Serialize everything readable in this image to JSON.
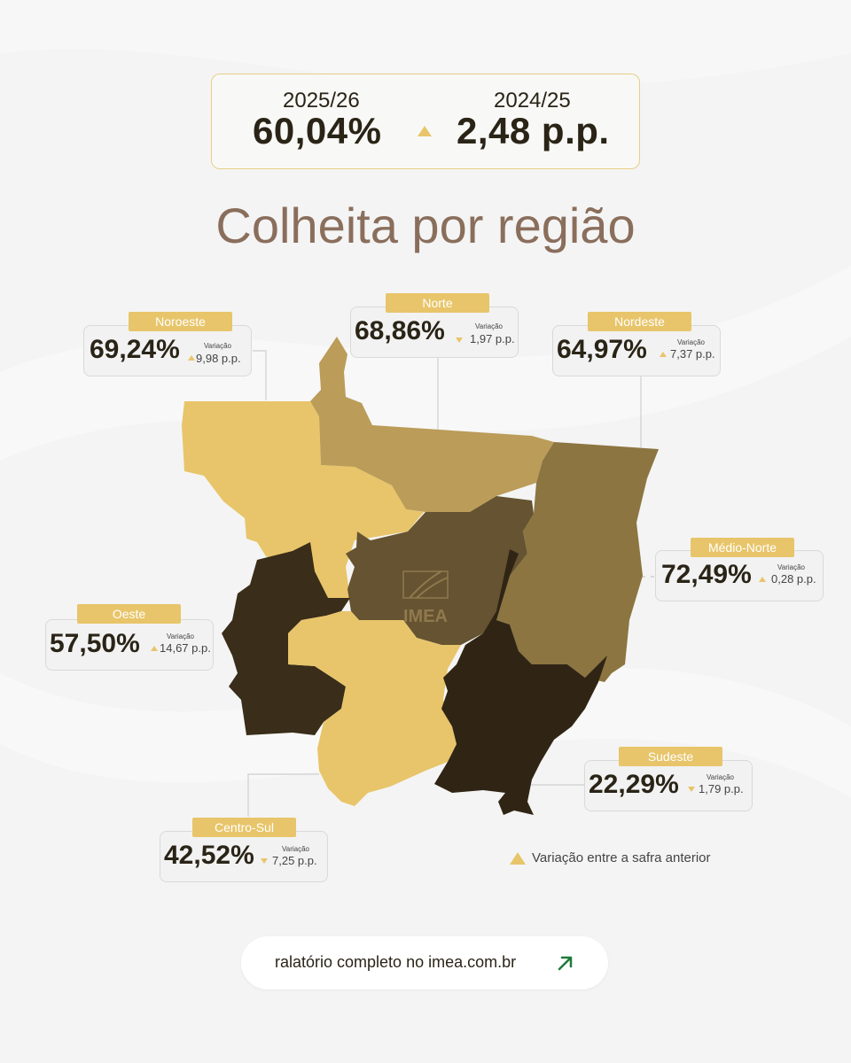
{
  "summary": {
    "current_season": "2025/26",
    "current_value": "60,04%",
    "previous_season": "2024/25",
    "variation": "2,48 p.p.",
    "direction": "up"
  },
  "headline": "Colheita por região",
  "colors": {
    "accent": "#e8c56a",
    "text_dark": "#2a2417",
    "headline": "#8a6e5c",
    "link_arrow": "#1f7a3a"
  },
  "variation_label": "Variação",
  "regions": [
    {
      "name": "Noroeste",
      "value": "69,24%",
      "variation": "9,98 p.p.",
      "direction": "up",
      "fill": "#e8c56a"
    },
    {
      "name": "Norte",
      "value": "68,86%",
      "variation": "1,97 p.p.",
      "direction": "down",
      "fill": "#bb9c58"
    },
    {
      "name": "Nordeste",
      "value": "64,97%",
      "variation": "7,37 p.p.",
      "direction": "up",
      "fill": "#8c7540"
    },
    {
      "name": "Médio-Norte",
      "value": "72,49%",
      "variation": "0,28 p.p.",
      "direction": "up",
      "fill": "#655331"
    },
    {
      "name": "Oeste",
      "value": "57,50%",
      "variation": "14,67 p.p.",
      "direction": "up",
      "fill": "#3a2d19"
    },
    {
      "name": "Sudeste",
      "value": "22,29%",
      "variation": "1,79 p.p.",
      "direction": "down",
      "fill": "#302515"
    },
    {
      "name": "Centro-Sul",
      "value": "42,52%",
      "variation": "7,25 p.p.",
      "direction": "down",
      "fill": "#e8c56a"
    }
  ],
  "legend": {
    "text": "Variação entre a safra anterior",
    "icon": "triangle-up-icon"
  },
  "map": {
    "logo_text": "IMEA"
  },
  "footer": {
    "link_text": "ralatório completo no imea.com.br",
    "icon": "arrow-up-right-icon"
  }
}
